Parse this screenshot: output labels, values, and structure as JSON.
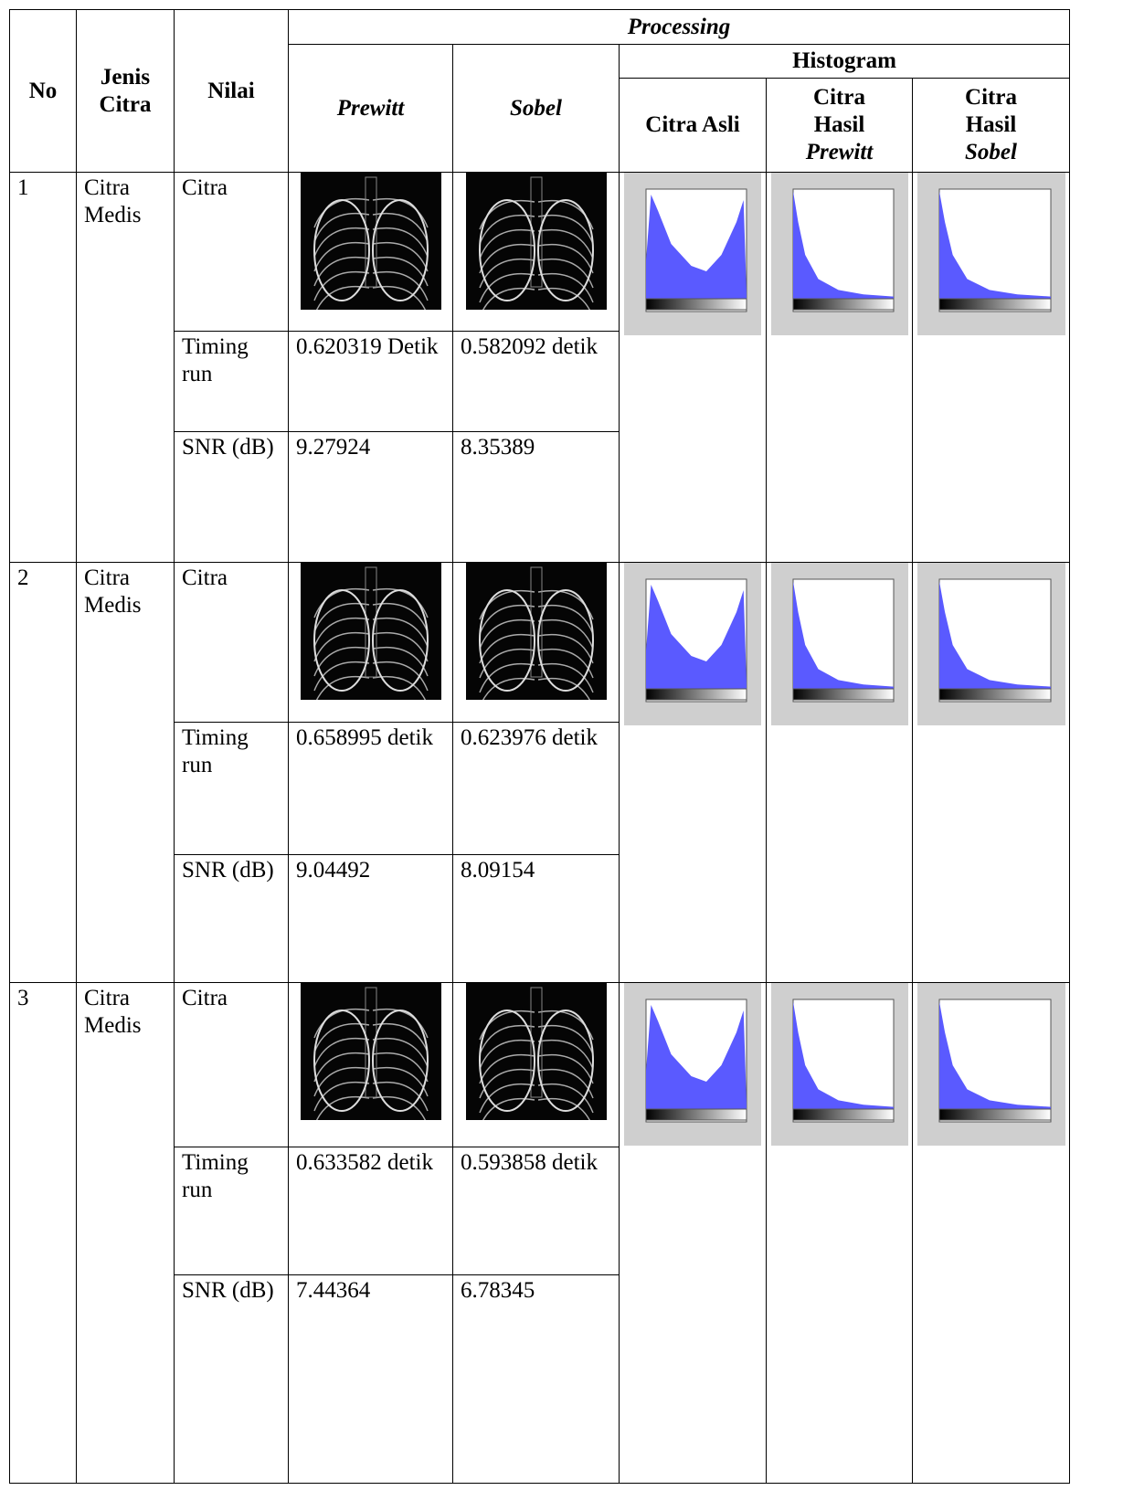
{
  "header": {
    "no": "No",
    "jenis": "Jenis Citra",
    "nilai": "Nilai",
    "processing": "Processing",
    "prewitt": "Prewitt",
    "sobel": "Sobel",
    "histogram": "Histogram",
    "citra_asli": "Citra Asli",
    "citra_hasil": "Citra Hasil"
  },
  "rows": [
    {
      "no": "1",
      "jenis": "Citra Medis",
      "citra_label": "Citra",
      "timing_label": "Timing run",
      "prewitt_timing": "0.620319 Detik",
      "sobel_timing": "0.582092 detik",
      "snr_label": "SNR (dB)",
      "prewitt_snr": "9.27924",
      "sobel_snr": "8.35389"
    },
    {
      "no": "2",
      "jenis": "Citra Medis",
      "citra_label": "Citra",
      "timing_label": "Timing run",
      "prewitt_timing": "0.658995 detik",
      "sobel_timing": "0.623976 detik",
      "snr_label": "SNR (dB)",
      "prewitt_snr": "9.04492",
      "sobel_snr": "8.09154"
    },
    {
      "no": "3",
      "jenis": "Citra Medis",
      "citra_label": "Citra",
      "timing_label": "Timing run",
      "prewitt_timing": "0.633582 detik",
      "sobel_timing": "0.593858 detik",
      "snr_label": "SNR (dB)",
      "prewitt_snr": "7.44364",
      "sobel_snr": "6.78345"
    }
  ]
}
